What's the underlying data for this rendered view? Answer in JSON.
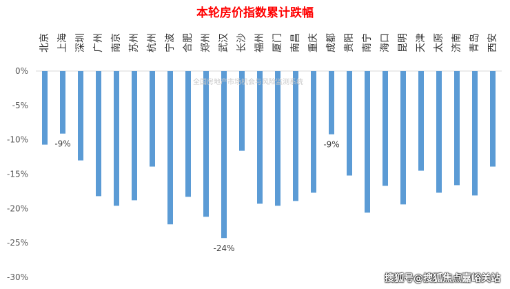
{
  "chart_data": {
    "type": "bar",
    "title": "本轮房价指数累计跌幅",
    "categories": [
      "北京",
      "上海",
      "深圳",
      "广州",
      "南京",
      "苏州",
      "杭州",
      "宁波",
      "合肥",
      "郑州",
      "武汉",
      "长沙",
      "福州",
      "厦门",
      "南昌",
      "重庆",
      "成都",
      "贵阳",
      "南宁",
      "海口",
      "昆明",
      "天津",
      "太原",
      "济南",
      "青岛",
      "西安"
    ],
    "values": [
      -10.7,
      -9.1,
      -13.0,
      -18.2,
      -19.6,
      -18.8,
      -13.9,
      -22.3,
      -18.3,
      -21.2,
      -24.3,
      -11.6,
      -19.3,
      -19.6,
      -18.9,
      -17.7,
      -9.2,
      -15.2,
      -20.6,
      -16.7,
      -19.4,
      -14.5,
      -17.7,
      -16.6,
      -18.1,
      -13.9
    ],
    "data_labels": [
      {
        "category": "上海",
        "text": "-9%"
      },
      {
        "category": "武汉",
        "text": "-24%"
      },
      {
        "category": "成都",
        "text": "-9%"
      }
    ],
    "ylim": [
      -30,
      0
    ],
    "yticks": [
      0,
      -5,
      -10,
      -15,
      -20,
      -25,
      -30
    ],
    "ytick_labels": [
      "0%",
      "-5%",
      "-10%",
      "-15%",
      "-20%",
      "-25%",
      "-30%"
    ],
    "xlabel": "",
    "ylabel": "",
    "bar_color": "#5b9bd5",
    "grid": false,
    "watermark": "全国房地产市场机会与风险监测系统"
  },
  "source": "搜狐号@搜狐焦点嘉峪关站"
}
